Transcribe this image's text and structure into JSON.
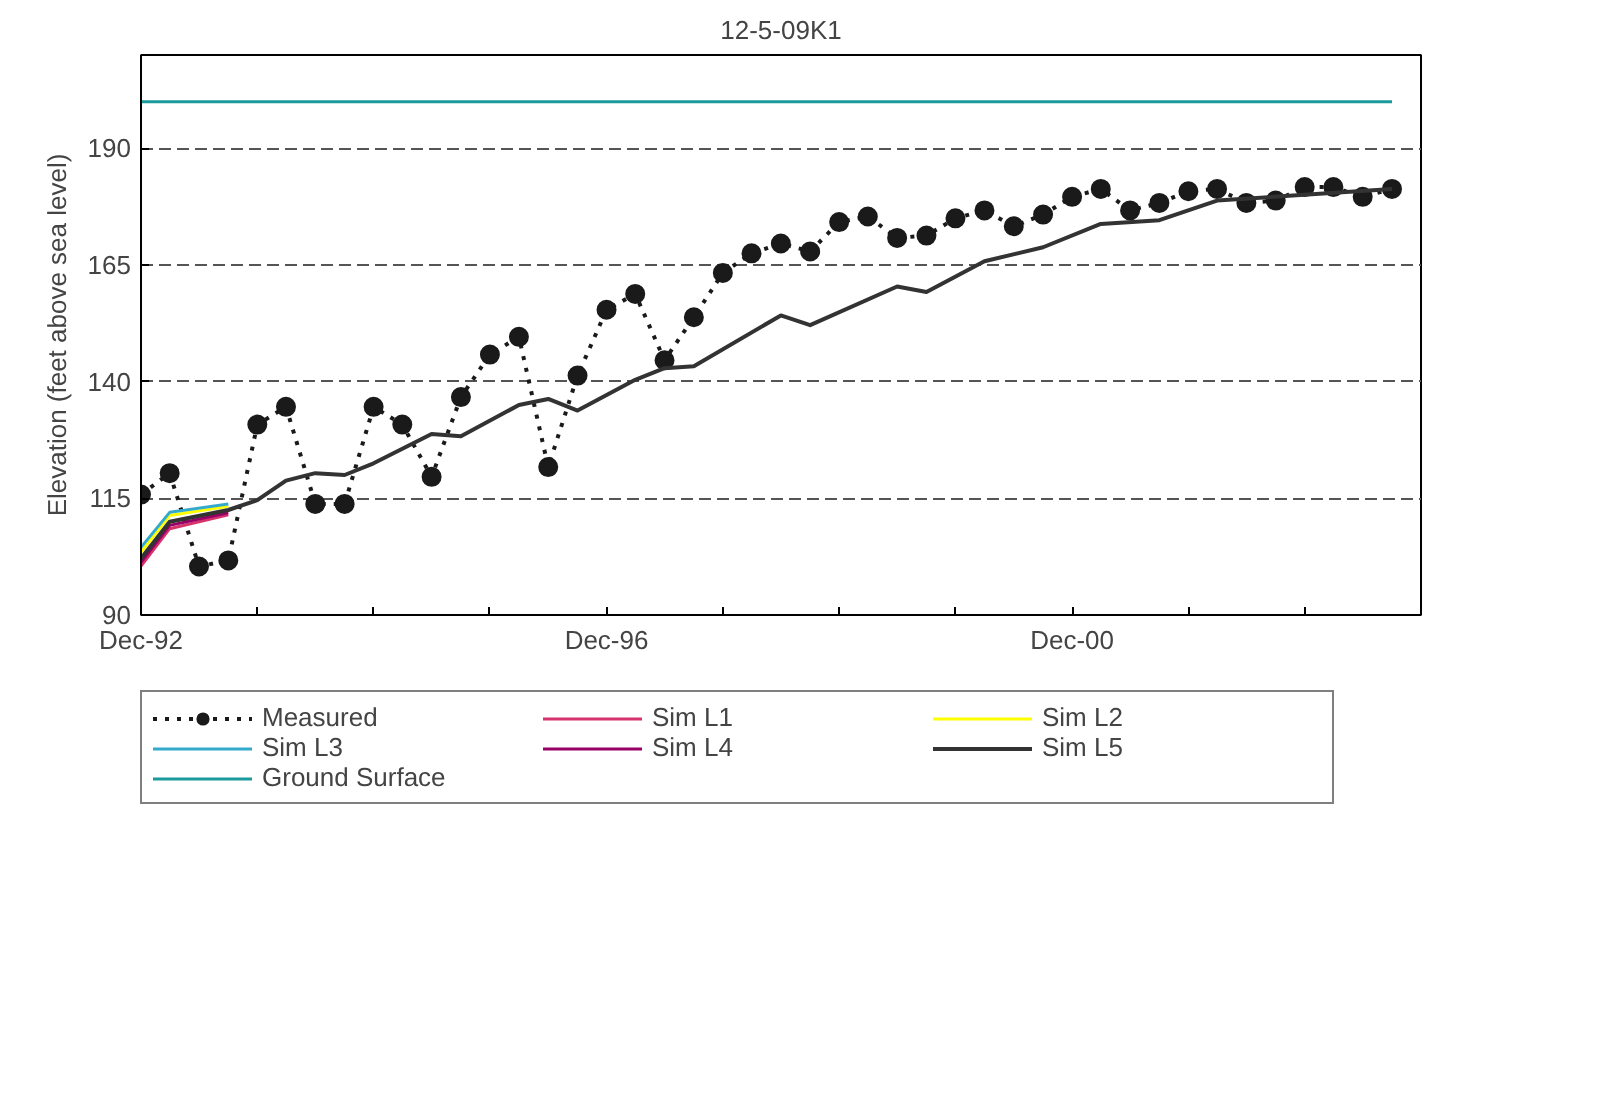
{
  "chart_data": {
    "type": "line",
    "title": "12-5-09K1",
    "ylabel": "Elevation (feet above sea level)",
    "ylim": [
      90,
      210
    ],
    "yticks": [
      90,
      115,
      140,
      165,
      190
    ],
    "xlim": [
      "1992-12",
      "2003-12"
    ],
    "xticks": [
      {
        "value": "1992-12",
        "label": "Dec-92"
      },
      {
        "value": "1993-12",
        "label": null
      },
      {
        "value": "1994-12",
        "label": null
      },
      {
        "value": "1995-12",
        "label": null
      },
      {
        "value": "1996-12",
        "label": "Dec-96"
      },
      {
        "value": "1997-12",
        "label": null
      },
      {
        "value": "1998-12",
        "label": null
      },
      {
        "value": "1999-12",
        "label": null
      },
      {
        "value": "2000-12",
        "label": "Dec-00"
      },
      {
        "value": "2001-12",
        "label": null
      },
      {
        "value": "2002-12",
        "label": null
      },
      {
        "value": "2003-12",
        "label": null
      }
    ],
    "grid": "y",
    "legend": "bottom",
    "series": [
      {
        "name": "Measured",
        "color": "#1a1a1a",
        "marker": "circle",
        "line_style": "dotted",
        "x": [
          "1992-12",
          "1993-03",
          "1993-06",
          "1993-09",
          "1993-12",
          "1994-03",
          "1994-06",
          "1994-09",
          "1994-12",
          "1995-03",
          "1995-06",
          "1995-09",
          "1995-12",
          "1996-03",
          "1996-06",
          "1996-09",
          "1996-12",
          "1997-03",
          "1997-06",
          "1997-09",
          "1997-12",
          "1998-03",
          "1998-06",
          "1998-09",
          "1998-12",
          "1999-03",
          "1999-06",
          "1999-09",
          "1999-12",
          "2000-03",
          "2000-06",
          "2000-09",
          "2000-12",
          "2001-03",
          "2001-06",
          "2001-09",
          "2001-12",
          "2002-03",
          "2002-06",
          "2002-09",
          "2002-12",
          "2003-03",
          "2003-06",
          "2003-09"
        ],
        "values": [
          115.8,
          120.4,
          100.4,
          101.7,
          130.8,
          134.6,
          113.8,
          113.8,
          134.6,
          130.8,
          119.6,
          136.7,
          145.8,
          149.6,
          121.7,
          141.3,
          155.4,
          158.8,
          144.6,
          153.8,
          163.3,
          167.5,
          169.6,
          167.9,
          174.2,
          175.4,
          170.8,
          171.3,
          175,
          176.7,
          173.3,
          175.8,
          179.6,
          181.3,
          176.7,
          178.3,
          180.8,
          181.3,
          178.3,
          178.8,
          181.7,
          181.7,
          179.6,
          181.3
        ]
      },
      {
        "name": "Sim L1",
        "color": "#d6336c",
        "marker": "none",
        "line_style": "solid",
        "x": [
          "1992-12",
          "1993-03",
          "1993-09"
        ],
        "values": [
          100.5,
          108.5,
          111.5
        ]
      },
      {
        "name": "Sim L2",
        "color": "#ffff00",
        "marker": "none",
        "line_style": "solid",
        "x": [
          "1992-12",
          "1993-03",
          "1993-09"
        ],
        "values": [
          103.5,
          111.3,
          113.3
        ]
      },
      {
        "name": "Sim L3",
        "color": "#33aacc",
        "marker": "none",
        "line_style": "solid",
        "x": [
          "1992-12",
          "1993-03",
          "1993-09"
        ],
        "values": [
          104.5,
          112,
          113.8
        ]
      },
      {
        "name": "Sim L4",
        "color": "#990066",
        "marker": "none",
        "line_style": "solid",
        "x": [
          "1992-12",
          "1993-03",
          "1993-09"
        ],
        "values": [
          101.3,
          109.2,
          111.9
        ]
      },
      {
        "name": "Sim L5",
        "color": "#333333",
        "marker": "none",
        "line_style": "solid",
        "x": [
          "1992-12",
          "1993-03",
          "1993-09",
          "1993-12",
          "1994-03",
          "1994-06",
          "1994-09",
          "1994-12",
          "1995-06",
          "1995-09",
          "1996-03",
          "1996-06",
          "1996-09",
          "1997-03",
          "1997-06",
          "1997-09",
          "1998-06",
          "1998-09",
          "1999-06",
          "1999-09",
          "2000-03",
          "2000-09",
          "2001-03",
          "2001-09",
          "2002-03",
          "2003-09"
        ],
        "values": [
          102.1,
          110,
          112.5,
          114.6,
          118.8,
          120.4,
          120,
          122.5,
          128.8,
          128.3,
          135,
          136.3,
          133.8,
          140.4,
          142.9,
          143.3,
          154.2,
          152.1,
          160.4,
          159.2,
          165.8,
          168.8,
          173.8,
          174.6,
          178.8,
          181.3
        ]
      },
      {
        "name": "Ground Surface",
        "color": "#1a9a9a",
        "marker": "none",
        "line_style": "solid",
        "x": [
          "1992-12",
          "2003-09"
        ],
        "values": [
          200,
          200
        ]
      }
    ]
  }
}
